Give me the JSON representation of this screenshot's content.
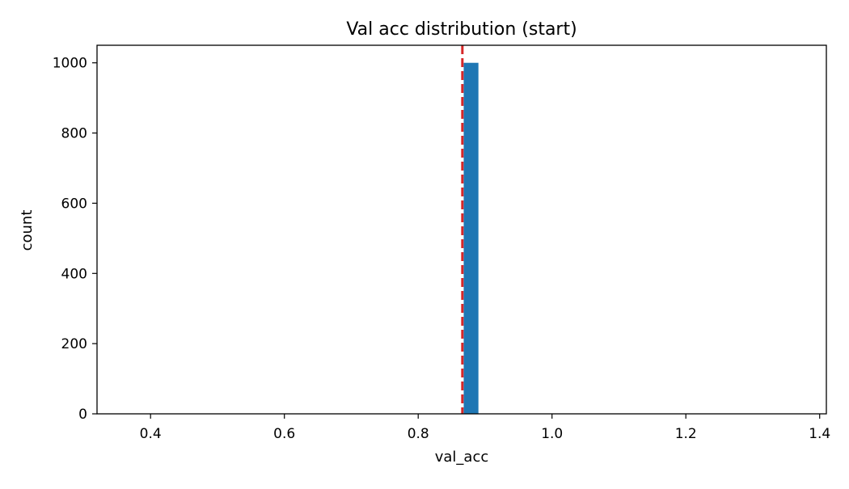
{
  "chart_data": {
    "type": "bar",
    "title": "Val acc distribution (start)",
    "xlabel": "val_acc",
    "ylabel": "count",
    "xlim": [
      0.32,
      1.41
    ],
    "ylim": [
      0,
      1050
    ],
    "xticks": [
      0.4,
      0.6,
      0.8,
      1.0,
      1.2,
      1.4
    ],
    "xtick_labels": [
      "0.4",
      "0.6",
      "0.8",
      "1.0",
      "1.2",
      "1.4"
    ],
    "yticks": [
      0,
      200,
      400,
      600,
      800,
      1000
    ],
    "ytick_labels": [
      "0",
      "200",
      "400",
      "600",
      "800",
      "1000"
    ],
    "bins": [
      {
        "x0": 0.868,
        "x1": 0.89,
        "count": 1000
      }
    ],
    "reference_line": {
      "x": 0.866,
      "style": "dashed",
      "color": "#d62728"
    },
    "bar_color": "#1f77b4",
    "grid": false,
    "legend": "none"
  }
}
